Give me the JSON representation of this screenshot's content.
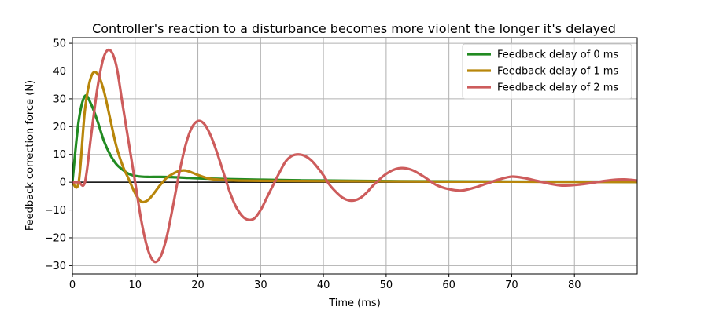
{
  "chart_data": {
    "type": "line",
    "title": "Controller's reaction to a disturbance becomes more violent the longer it's delayed",
    "xlabel": "Time (ms)",
    "ylabel": "Feedback correction force (N)",
    "xlim": [
      0,
      90
    ],
    "ylim": [
      -33,
      52
    ],
    "x_ticks": [
      0,
      10,
      20,
      30,
      40,
      50,
      60,
      70,
      80
    ],
    "y_ticks": [
      -30,
      -20,
      -10,
      0,
      10,
      20,
      30,
      40,
      50
    ],
    "grid": true,
    "legend_position": "top-right",
    "reference_line": {
      "y": 0,
      "color": "#000000"
    },
    "series": [
      {
        "name": "Feedback delay of 0 ms",
        "color": "#228B22",
        "x": [
          0,
          1,
          2,
          3,
          4,
          5,
          6,
          7,
          8,
          9,
          10,
          11,
          12,
          14,
          16,
          18,
          20,
          25,
          30,
          35,
          40,
          50,
          60,
          70,
          80,
          90
        ],
        "y": [
          0,
          22,
          31,
          28,
          22,
          15,
          10,
          6.5,
          4.5,
          3,
          2.3,
          2,
          1.9,
          1.9,
          1.8,
          1.6,
          1.4,
          1.1,
          0.9,
          0.7,
          0.6,
          0.4,
          0.3,
          0.2,
          0.2,
          0.1
        ]
      },
      {
        "name": "Feedback delay of 1 ms",
        "color": "#B8860B",
        "x": [
          0,
          1,
          2,
          3,
          4,
          5,
          6,
          7,
          8,
          9,
          10,
          11,
          12,
          13,
          14,
          15,
          16,
          17,
          18,
          19,
          20,
          21,
          22,
          24,
          26,
          30,
          40,
          50,
          60,
          70,
          80,
          90
        ],
        "y": [
          0,
          0,
          26,
          38,
          39,
          33,
          23,
          13,
          6,
          1,
          -4,
          -7,
          -6.5,
          -4,
          -1,
          1.5,
          3,
          4,
          4.2,
          3.5,
          2.6,
          1.8,
          1.2,
          0.8,
          0.6,
          0.5,
          0.4,
          0.3,
          0.2,
          0.2,
          0.1,
          0.1
        ],
        "note": ""
      },
      {
        "name": "Feedback delay of 2 ms",
        "color": "#CD5C5C",
        "x": [
          0,
          1,
          2,
          3,
          4,
          5,
          6,
          7,
          8,
          9,
          10,
          11,
          12,
          13,
          14,
          15,
          16,
          17,
          18,
          19,
          20,
          21,
          22,
          23,
          24,
          25,
          26,
          27,
          28,
          29,
          30,
          31,
          32,
          33,
          34,
          35,
          36,
          37,
          38,
          39,
          40,
          41,
          42,
          43,
          44,
          45,
          46,
          47,
          48,
          50,
          52,
          54,
          56,
          58,
          60,
          62,
          64,
          66,
          68,
          70,
          72,
          74,
          76,
          78,
          80,
          82,
          84,
          86,
          88,
          90
        ],
        "y": [
          0,
          0,
          0,
          17,
          34,
          45,
          47.5,
          42,
          28,
          14,
          0,
          -14,
          -24,
          -28.5,
          -27,
          -20,
          -9,
          3,
          13,
          19.5,
          22,
          21,
          17,
          11,
          4,
          -3,
          -8.5,
          -12,
          -13.5,
          -13,
          -10,
          -5.5,
          -1,
          3.5,
          7.5,
          9.5,
          10,
          9.5,
          8,
          5.5,
          2.5,
          -1,
          -3.5,
          -5.5,
          -6.5,
          -6.5,
          -5.5,
          -3.5,
          -1,
          3,
          5,
          4.5,
          2,
          -1,
          -2.5,
          -3,
          -2,
          -0.5,
          1,
          2,
          1.5,
          0.5,
          -0.5,
          -1.2,
          -1,
          -0.5,
          0.2,
          0.8,
          1,
          0.6
        ]
      }
    ]
  }
}
